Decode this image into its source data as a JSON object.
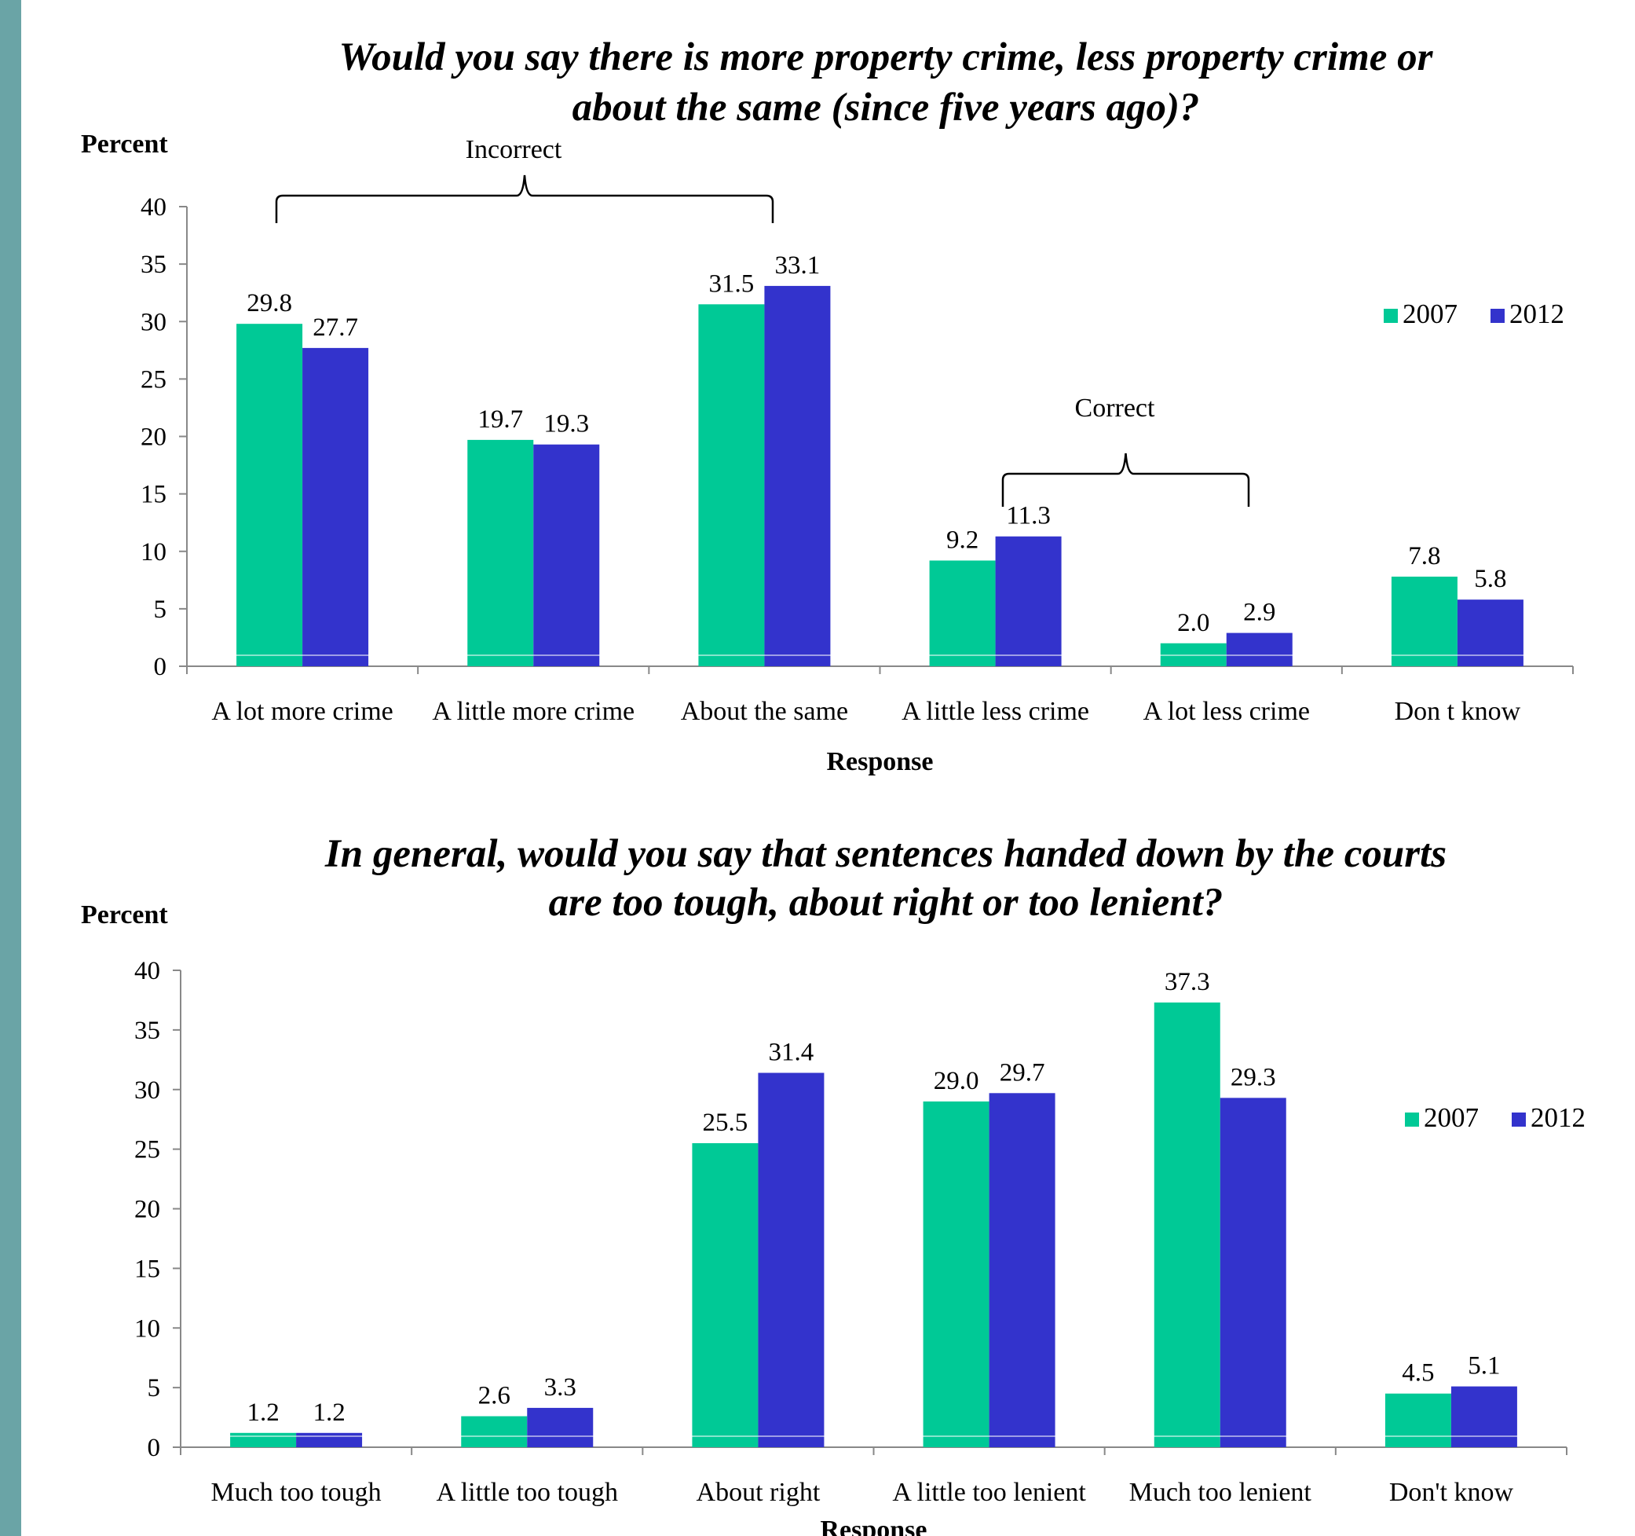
{
  "colors": {
    "series_2007": "#00c996",
    "series_2012": "#3333cc",
    "side_bar": "#6aa4a6"
  },
  "chart_data": [
    {
      "type": "bar",
      "title_lines": [
        "Would you say there is more property crime, less property crime or",
        "about the same (since five years ago)?"
      ],
      "ylabel": "Percent",
      "xlabel": "Response",
      "ylim": [
        0,
        40
      ],
      "yticks": [
        "0",
        "5",
        "10",
        "15",
        "20",
        "25",
        "30",
        "35",
        "40"
      ],
      "categories": [
        "A lot more crime",
        "A little more crime",
        "About the same",
        "A little less crime",
        "A lot less crime",
        "Don t know"
      ],
      "series": [
        {
          "name": "2007",
          "values": [
            29.8,
            19.7,
            31.5,
            9.2,
            2.0,
            7.8
          ],
          "labels": [
            "29.8",
            "19.7",
            "31.5",
            "9.2",
            "2.0",
            "7.8"
          ]
        },
        {
          "name": "2012",
          "values": [
            27.7,
            19.3,
            33.1,
            11.3,
            2.9,
            5.8
          ],
          "labels": [
            "27.7",
            "19.3",
            "33.1",
            "11.3",
            "2.9",
            "5.8"
          ]
        }
      ],
      "legend": "right",
      "grid": false,
      "annotations": [
        {
          "text": "Incorrect",
          "spans": "A lot more crime to About the same"
        },
        {
          "text": "Correct",
          "spans": "A little less crime to A lot less crime"
        }
      ]
    },
    {
      "type": "bar",
      "title_lines": [
        "In general, would you say that sentences handed down by the courts",
        "are too tough, about right or too lenient?"
      ],
      "ylabel": "Percent",
      "xlabel": "Response",
      "ylim": [
        0,
        40
      ],
      "yticks": [
        "0",
        "5",
        "10",
        "15",
        "20",
        "25",
        "30",
        "35",
        "40"
      ],
      "categories": [
        "Much too tough",
        "A little too tough",
        "About right",
        "A little too lenient",
        "Much too lenient",
        "Don't know"
      ],
      "series": [
        {
          "name": "2007",
          "values": [
            1.2,
            2.6,
            25.5,
            29.0,
            37.3,
            4.5
          ],
          "labels": [
            "1.2",
            "2.6",
            "25.5",
            "29.0",
            "37.3",
            "4.5"
          ]
        },
        {
          "name": "2012",
          "values": [
            1.2,
            3.3,
            31.4,
            29.7,
            29.3,
            5.1
          ],
          "labels": [
            "1.2",
            "3.3",
            "31.4",
            "29.7",
            "29.3",
            "5.1"
          ]
        }
      ],
      "legend": "right",
      "grid": false
    }
  ]
}
